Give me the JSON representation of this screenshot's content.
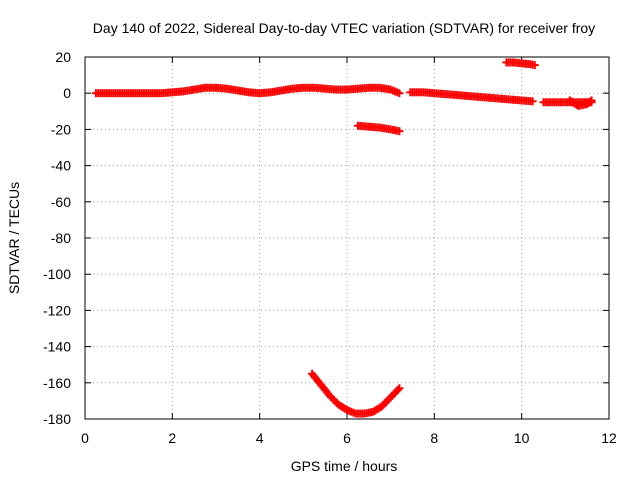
{
  "chart_data": {
    "type": "scatter",
    "title": "Day 140 of 2022, Sidereal Day-to-day VTEC variation (SDTVAR) for receiver froy",
    "xlabel": "GPS time / hours",
    "ylabel": "SDTVAR / TECUs",
    "xlim": [
      0,
      12
    ],
    "ylim": [
      -180,
      20
    ],
    "xticks": [
      0,
      2,
      4,
      6,
      8,
      10,
      12
    ],
    "yticks": [
      20,
      0,
      -20,
      -40,
      -60,
      -80,
      -100,
      -120,
      -140,
      -160,
      -180
    ],
    "grid": true,
    "marker": "plus",
    "color": "#ff0000",
    "series": [
      {
        "x": [
          0.25,
          0.5,
          0.75,
          1.0,
          1.25,
          1.5,
          1.75,
          2.0,
          2.25,
          2.5,
          2.75,
          3.0,
          3.25,
          3.5,
          3.75,
          4.0,
          4.25,
          4.5,
          4.75,
          5.0,
          5.25,
          5.5,
          5.75,
          6.0,
          6.25,
          6.5,
          6.75,
          7.0,
          7.2
        ],
        "y": [
          0,
          0,
          0,
          0,
          0,
          0,
          0,
          0.5,
          1,
          2,
          3,
          3,
          2.5,
          1.5,
          0.5,
          0,
          0.5,
          1.5,
          2.5,
          3,
          3,
          2.5,
          2,
          2,
          2.5,
          3,
          3,
          2,
          0
        ]
      },
      {
        "x": [
          7.45,
          7.75,
          8.0,
          8.25,
          8.5,
          8.75,
          9.0,
          9.25,
          9.5,
          9.75,
          10.0,
          10.25
        ],
        "y": [
          0.5,
          0.5,
          0,
          -0.5,
          -1,
          -1.5,
          -2,
          -2.5,
          -3,
          -3.5,
          -4,
          -4.5
        ]
      },
      {
        "x": [
          10.5,
          10.75,
          11.0,
          11.25,
          11.5,
          11.6
        ],
        "y": [
          -5,
          -5,
          -5,
          -5,
          -5,
          -5
        ]
      },
      {
        "x": [
          11.1,
          11.3,
          11.5,
          11.6
        ],
        "y": [
          -4,
          -7,
          -6,
          -4
        ]
      },
      {
        "x": [
          6.25,
          6.5,
          6.75,
          7.0,
          7.2
        ],
        "y": [
          -18,
          -18.5,
          -19,
          -20,
          -21
        ]
      },
      {
        "x": [
          9.65,
          9.8,
          10.0,
          10.2,
          10.3
        ],
        "y": [
          17,
          17,
          16.5,
          16,
          15.5
        ]
      },
      {
        "x": [
          5.2,
          5.4,
          5.6,
          5.8,
          6.0,
          6.2,
          6.4,
          6.6,
          6.8,
          7.0,
          7.2
        ],
        "y": [
          -155,
          -161,
          -167,
          -172,
          -175,
          -177,
          -177,
          -176,
          -173,
          -168,
          -163
        ]
      }
    ]
  }
}
